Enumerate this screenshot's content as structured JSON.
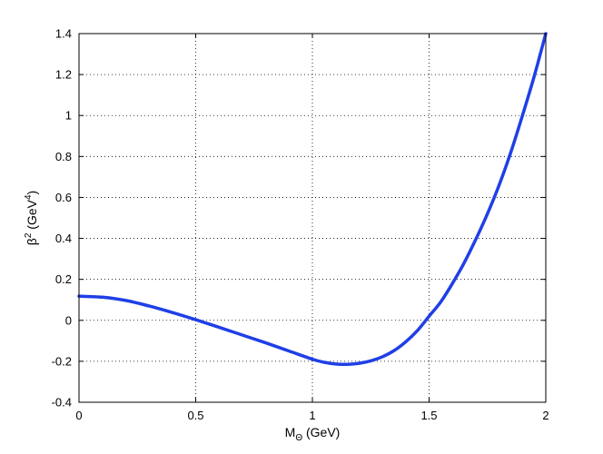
{
  "chart_data": {
    "type": "line",
    "xlabel": {
      "base": "M",
      "sub": "Θ",
      "rest": " (GeV)"
    },
    "ylabel": {
      "base": "β",
      "sup": "2",
      "mid": " (GeV",
      "sup2": "4",
      "end": ")"
    },
    "xlim": [
      0,
      2
    ],
    "ylim": [
      -0.4,
      1.4
    ],
    "xticks": [
      0,
      0.5,
      1,
      1.5,
      2
    ],
    "xtick_labels": [
      "0",
      "0.5",
      "1",
      "1.5",
      "2"
    ],
    "yticks": [
      -0.4,
      -0.2,
      0,
      0.2,
      0.4,
      0.6,
      0.8,
      1,
      1.2,
      1.4
    ],
    "ytick_labels": [
      "-0.4",
      "-0.2",
      "0",
      "0.2",
      "0.4",
      "0.6",
      "0.8",
      "1",
      "1.2",
      "1.4"
    ],
    "grid": true,
    "series": [
      {
        "color": "#1f3fe6",
        "x": [
          0,
          0.1,
          0.2,
          0.3,
          0.4,
          0.5,
          0.6,
          0.7,
          0.8,
          0.9,
          1.0,
          1.05,
          1.1,
          1.15,
          1.2,
          1.25,
          1.3,
          1.35,
          1.4,
          1.45,
          1.5,
          1.55,
          1.6,
          1.65,
          1.7,
          1.75,
          1.8,
          1.85,
          1.9,
          1.95,
          2.0
        ],
        "y": [
          0.118,
          0.113,
          0.097,
          0.07,
          0.038,
          0.003,
          -0.034,
          -0.072,
          -0.11,
          -0.15,
          -0.19,
          -0.205,
          -0.213,
          -0.215,
          -0.21,
          -0.198,
          -0.178,
          -0.148,
          -0.105,
          -0.05,
          0.02,
          0.09,
          0.18,
          0.28,
          0.395,
          0.52,
          0.66,
          0.82,
          1.0,
          1.19,
          1.4
        ]
      }
    ]
  }
}
